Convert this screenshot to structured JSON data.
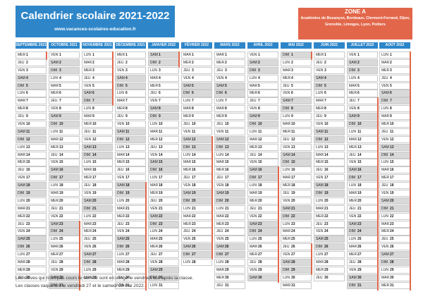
{
  "header": {
    "title": "Calendrier scolaire 2021-2022",
    "site": "www.vacances-scolaires-education.fr"
  },
  "zone": {
    "title": "ZONE A",
    "desc": "Académies de Besançon, Bordeaux, Clermont-Ferrand, Dijon, Grenoble, Limoges, Lyon, Poitiers"
  },
  "colors": {
    "blue": "#2e86c9",
    "orange": "#e2674a",
    "weekend": "#d9d9d9"
  },
  "months": [
    {
      "name": "SEPTEMBRE 2021",
      "start": 2,
      "days": 30,
      "holidays": [
        1
      ]
    },
    {
      "name": "OCTOBRE 2021",
      "start": 4,
      "days": 31,
      "holidays": [
        23,
        24,
        25,
        26,
        27,
        28,
        29,
        30,
        31
      ]
    },
    {
      "name": "NOVEMBRE 2021",
      "start": 0,
      "days": 30,
      "holidays": [
        1,
        2,
        3,
        4,
        5,
        6,
        7
      ]
    },
    {
      "name": "DÉCEMBRE 2021",
      "start": 2,
      "days": 31,
      "holidays": [
        18,
        19,
        20,
        21,
        22,
        23,
        24,
        25,
        26,
        27,
        28,
        29,
        30,
        31
      ]
    },
    {
      "name": "JANVIER 2022",
      "start": 5,
      "days": 31,
      "holidays": [
        1,
        2
      ]
    },
    {
      "name": "FÉVRIER 2022",
      "start": 1,
      "days": 28,
      "holidays": [
        12,
        13,
        14,
        15,
        16,
        17,
        18,
        19,
        20,
        21,
        22,
        23,
        24,
        25,
        26,
        27
      ]
    },
    {
      "name": "MARS 2022",
      "start": 1,
      "days": 31,
      "holidays": []
    },
    {
      "name": "AVRIL 2022",
      "start": 4,
      "days": 30,
      "holidays": [
        16,
        17,
        18,
        19,
        20,
        21,
        22,
        23,
        24,
        25,
        26,
        27,
        28,
        29,
        30
      ]
    },
    {
      "name": "MAI 2022",
      "start": 6,
      "days": 31,
      "holidays": [
        1,
        26,
        27,
        28,
        29
      ]
    },
    {
      "name": "JUIN 2022",
      "start": 2,
      "days": 30,
      "holidays": []
    },
    {
      "name": "JUILLET 2022",
      "start": 4,
      "days": 31,
      "holidays": [
        7,
        8,
        9,
        10,
        11,
        12,
        13,
        14,
        15,
        16,
        17,
        18,
        19,
        20,
        21,
        22,
        23,
        24,
        25,
        26,
        27,
        28,
        29,
        30,
        31
      ]
    },
    {
      "name": "AOÛT 2022",
      "start": 0,
      "days": 31,
      "holidays": [
        1,
        2,
        3,
        4,
        5,
        6,
        7,
        8,
        9,
        10,
        11,
        12,
        13,
        14,
        15,
        16,
        17,
        18,
        19,
        20,
        21,
        22,
        23,
        24,
        25,
        26,
        27,
        28,
        29,
        30,
        31
      ]
    }
  ],
  "weekday_abbr": [
    "LUN",
    "MAR",
    "MER",
    "JEU",
    "VEN",
    "SAM",
    "DIM"
  ],
  "notes": [
    "Les élèves qui n'ont pas cours le samedi sont en congé le vendredi soir après la classe.",
    "Les classes vaqueront le vendredi 27 et le samedi 28 mai 2022."
  ]
}
